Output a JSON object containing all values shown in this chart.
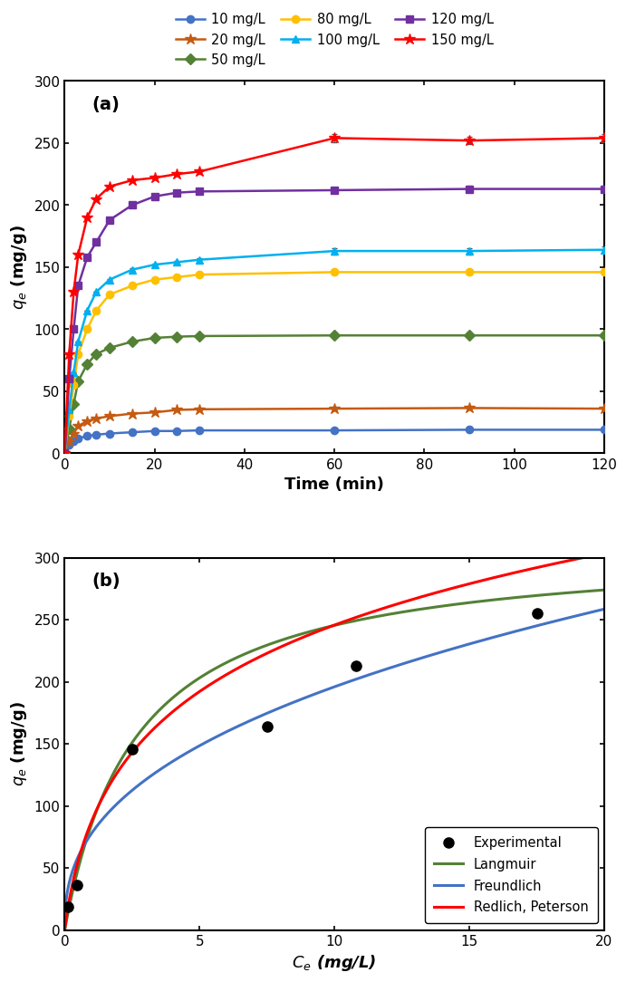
{
  "panel_a": {
    "title": "(a)",
    "xlabel": "Time (min)",
    "ylabel": "$q_e$ (mg/g)",
    "series": [
      {
        "label": "10 mg/L",
        "color": "#4472C4",
        "marker": "o",
        "linestyle": "-",
        "time": [
          0,
          1,
          2,
          3,
          5,
          7,
          10,
          15,
          20,
          25,
          30,
          60,
          90,
          120
        ],
        "qt": [
          0,
          7,
          10,
          12,
          14,
          15,
          16,
          17,
          18,
          18,
          18.5,
          18.5,
          19,
          19
        ],
        "yerr": [
          0,
          0,
          0,
          0,
          0,
          0,
          0,
          0,
          0.5,
          0.5,
          0.5,
          1.0,
          1.0,
          1.0
        ]
      },
      {
        "label": "20 mg/L",
        "color": "#C55A11",
        "marker": "*",
        "linestyle": "-",
        "time": [
          0,
          1,
          2,
          3,
          5,
          7,
          10,
          15,
          20,
          25,
          30,
          60,
          90,
          120
        ],
        "qt": [
          0,
          10,
          16,
          22,
          26,
          28,
          30,
          32,
          33,
          35,
          35.5,
          36,
          36.5,
          36
        ],
        "yerr": [
          0,
          0,
          0,
          0,
          0,
          0,
          0,
          0.5,
          0.5,
          1.0,
          1.0,
          1.5,
          1.5,
          1.5
        ]
      },
      {
        "label": "50 mg/L",
        "color": "#538135",
        "marker": "D",
        "linestyle": "-",
        "time": [
          0,
          1,
          2,
          3,
          5,
          7,
          10,
          15,
          20,
          25,
          30,
          60,
          90,
          120
        ],
        "qt": [
          0,
          20,
          40,
          58,
          72,
          80,
          85,
          90,
          93,
          94,
          94.5,
          95,
          95,
          95
        ],
        "yerr": [
          0,
          0,
          0,
          0,
          0,
          0,
          0.5,
          0.5,
          1.0,
          1.0,
          1.0,
          1.5,
          1.5,
          1.5
        ]
      },
      {
        "label": "80 mg/L",
        "color": "#FFC000",
        "marker": "o",
        "linestyle": "-",
        "time": [
          0,
          1,
          2,
          3,
          5,
          7,
          10,
          15,
          20,
          25,
          30,
          60,
          90,
          120
        ],
        "qt": [
          0,
          30,
          55,
          80,
          100,
          115,
          128,
          135,
          140,
          142,
          144,
          146,
          146,
          146
        ],
        "yerr": [
          0,
          0,
          0,
          0,
          0,
          0,
          0.5,
          1.0,
          1.0,
          1.0,
          1.5,
          2.0,
          2.0,
          2.0
        ]
      },
      {
        "label": "100 mg/L",
        "color": "#00B0F0",
        "marker": "^",
        "linestyle": "-",
        "time": [
          0,
          1,
          2,
          3,
          5,
          7,
          10,
          15,
          20,
          25,
          30,
          60,
          90,
          120
        ],
        "qt": [
          0,
          35,
          65,
          90,
          115,
          130,
          140,
          148,
          152,
          154,
          156,
          163,
          163,
          164
        ],
        "yerr": [
          0,
          0,
          0,
          0,
          0,
          0,
          0.5,
          1.0,
          1.0,
          1.0,
          1.5,
          2.5,
          2.5,
          2.5
        ]
      },
      {
        "label": "120 mg/L",
        "color": "#7030A0",
        "marker": "s",
        "linestyle": "-",
        "time": [
          0,
          1,
          2,
          3,
          5,
          7,
          10,
          15,
          20,
          25,
          30,
          60,
          90,
          120
        ],
        "qt": [
          0,
          60,
          100,
          135,
          158,
          170,
          188,
          200,
          207,
          210,
          211,
          212,
          213,
          213
        ],
        "yerr": [
          0,
          0,
          0,
          0,
          0,
          0,
          0.5,
          1.0,
          1.0,
          1.5,
          1.5,
          2.0,
          2.5,
          2.5
        ]
      },
      {
        "label": "150 mg/L",
        "color": "#FF0000",
        "marker": "*",
        "linestyle": "-",
        "time": [
          0,
          1,
          2,
          3,
          5,
          7,
          10,
          15,
          20,
          25,
          30,
          60,
          90,
          120
        ],
        "qt": [
          0,
          80,
          130,
          160,
          190,
          205,
          215,
          220,
          222,
          225,
          227,
          254,
          252,
          254
        ],
        "yerr": [
          0,
          0,
          0,
          0,
          0,
          0,
          0.5,
          1.0,
          1.5,
          1.5,
          2.0,
          3.0,
          3.0,
          3.0
        ]
      }
    ],
    "xlim": [
      0,
      120
    ],
    "ylim": [
      0,
      300
    ],
    "xticks": [
      0,
      20,
      40,
      60,
      80,
      100,
      120
    ],
    "yticks": [
      0,
      50,
      100,
      150,
      200,
      250,
      300
    ]
  },
  "panel_b": {
    "title": "(b)",
    "xlabel": "$C_e$ (mg/L)",
    "ylabel": "$q_e$ (mg/g)",
    "exp_x": [
      0.12,
      0.45,
      2.5,
      7.5,
      10.8,
      17.5
    ],
    "exp_y": [
      19,
      36,
      146,
      164,
      213,
      255
    ],
    "langmuir": {
      "label": "Langmuir",
      "color": "#538135",
      "qmax": 310.0,
      "KL": 0.38
    },
    "freundlich": {
      "label": "Freundlich",
      "color": "#4472C4",
      "Kf": 78.0,
      "n": 2.5
    },
    "redlich_peterson": {
      "label": "Redlich, Peterson",
      "color": "#FF0000",
      "KR": 180.0,
      "aR": 1.05,
      "beta": 0.78
    },
    "xlim": [
      0,
      20
    ],
    "ylim": [
      0,
      300
    ],
    "xticks": [
      0,
      5,
      10,
      15,
      20
    ],
    "yticks": [
      0,
      50,
      100,
      150,
      200,
      250,
      300
    ]
  }
}
